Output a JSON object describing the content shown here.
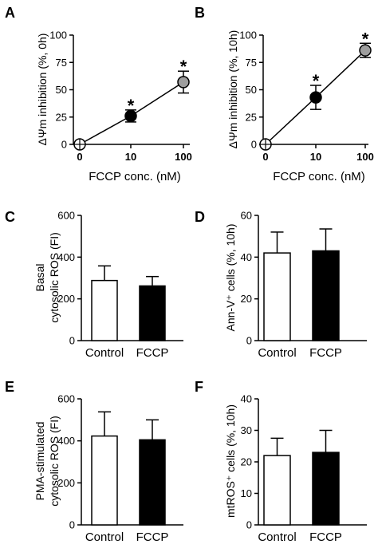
{
  "chart_data": [
    {
      "panel": "A",
      "type": "line",
      "ylabel": "ΔΨm inhibition (%, 0h)",
      "xlabel": "FCCP conc. (nM)",
      "x_ticks": [
        "0",
        "10",
        "100"
      ],
      "y_ticks": [
        "0",
        "25",
        "50",
        "75",
        "100"
      ],
      "ylim": [
        0,
        100
      ],
      "points": [
        {
          "x": "0",
          "y": 0,
          "err": 0,
          "fill": "#ffffff",
          "star": false
        },
        {
          "x": "10",
          "y": 26,
          "err": 5.5,
          "fill": "#000000",
          "star": true
        },
        {
          "x": "100",
          "y": 57,
          "err": 10,
          "fill": "#9e9e9e",
          "star": true
        }
      ],
      "star_label": "*"
    },
    {
      "panel": "B",
      "type": "line",
      "ylabel": "ΔΨm inhibition (%, 10h)",
      "xlabel": "FCCP conc. (nM)",
      "x_ticks": [
        "0",
        "10",
        "100"
      ],
      "y_ticks": [
        "0",
        "25",
        "50",
        "75",
        "100"
      ],
      "ylim": [
        0,
        100
      ],
      "points": [
        {
          "x": "0",
          "y": 0,
          "err": 0,
          "fill": "#ffffff",
          "star": false
        },
        {
          "x": "10",
          "y": 43,
          "err": 11,
          "fill": "#000000",
          "star": true
        },
        {
          "x": "100",
          "y": 86,
          "err": 6.5,
          "fill": "#9e9e9e",
          "star": true
        }
      ],
      "star_label": "*"
    },
    {
      "panel": "C",
      "type": "bar",
      "ylabel_lines": [
        "Basal",
        "cytosolic ROS (FI)"
      ],
      "categories": [
        "Control",
        "FCCP"
      ],
      "values": [
        288,
        262
      ],
      "errors": [
        70,
        45
      ],
      "fills": [
        "#ffffff",
        "#000000"
      ],
      "y_ticks": [
        "0",
        "200",
        "400",
        "600"
      ],
      "ylim": [
        0,
        600
      ]
    },
    {
      "panel": "D",
      "type": "bar",
      "ylabel": "Ann-V⁺ cells (%, 10h)",
      "categories": [
        "Control",
        "FCCP"
      ],
      "values": [
        42,
        43
      ],
      "errors": [
        10,
        10.5
      ],
      "fills": [
        "#ffffff",
        "#000000"
      ],
      "y_ticks": [
        "0",
        "20",
        "40",
        "60"
      ],
      "ylim": [
        0,
        60
      ]
    },
    {
      "panel": "E",
      "type": "bar",
      "ylabel_lines": [
        "PMA-stimulated",
        "cytosolic ROS (FI)"
      ],
      "categories": [
        "Control",
        "FCCP"
      ],
      "values": [
        423,
        405
      ],
      "errors": [
        115,
        95
      ],
      "fills": [
        "#ffffff",
        "#000000"
      ],
      "y_ticks": [
        "0",
        "200",
        "400",
        "600"
      ],
      "ylim": [
        0,
        600
      ]
    },
    {
      "panel": "F",
      "type": "bar",
      "ylabel": "mtROS⁺ cells (%, 10h)",
      "categories": [
        "Control",
        "FCCP"
      ],
      "values": [
        22,
        23
      ],
      "errors": [
        5.5,
        7
      ],
      "fills": [
        "#ffffff",
        "#000000"
      ],
      "y_ticks": [
        "0",
        "10",
        "20",
        "30",
        "40"
      ],
      "ylim": [
        0,
        40
      ]
    }
  ]
}
